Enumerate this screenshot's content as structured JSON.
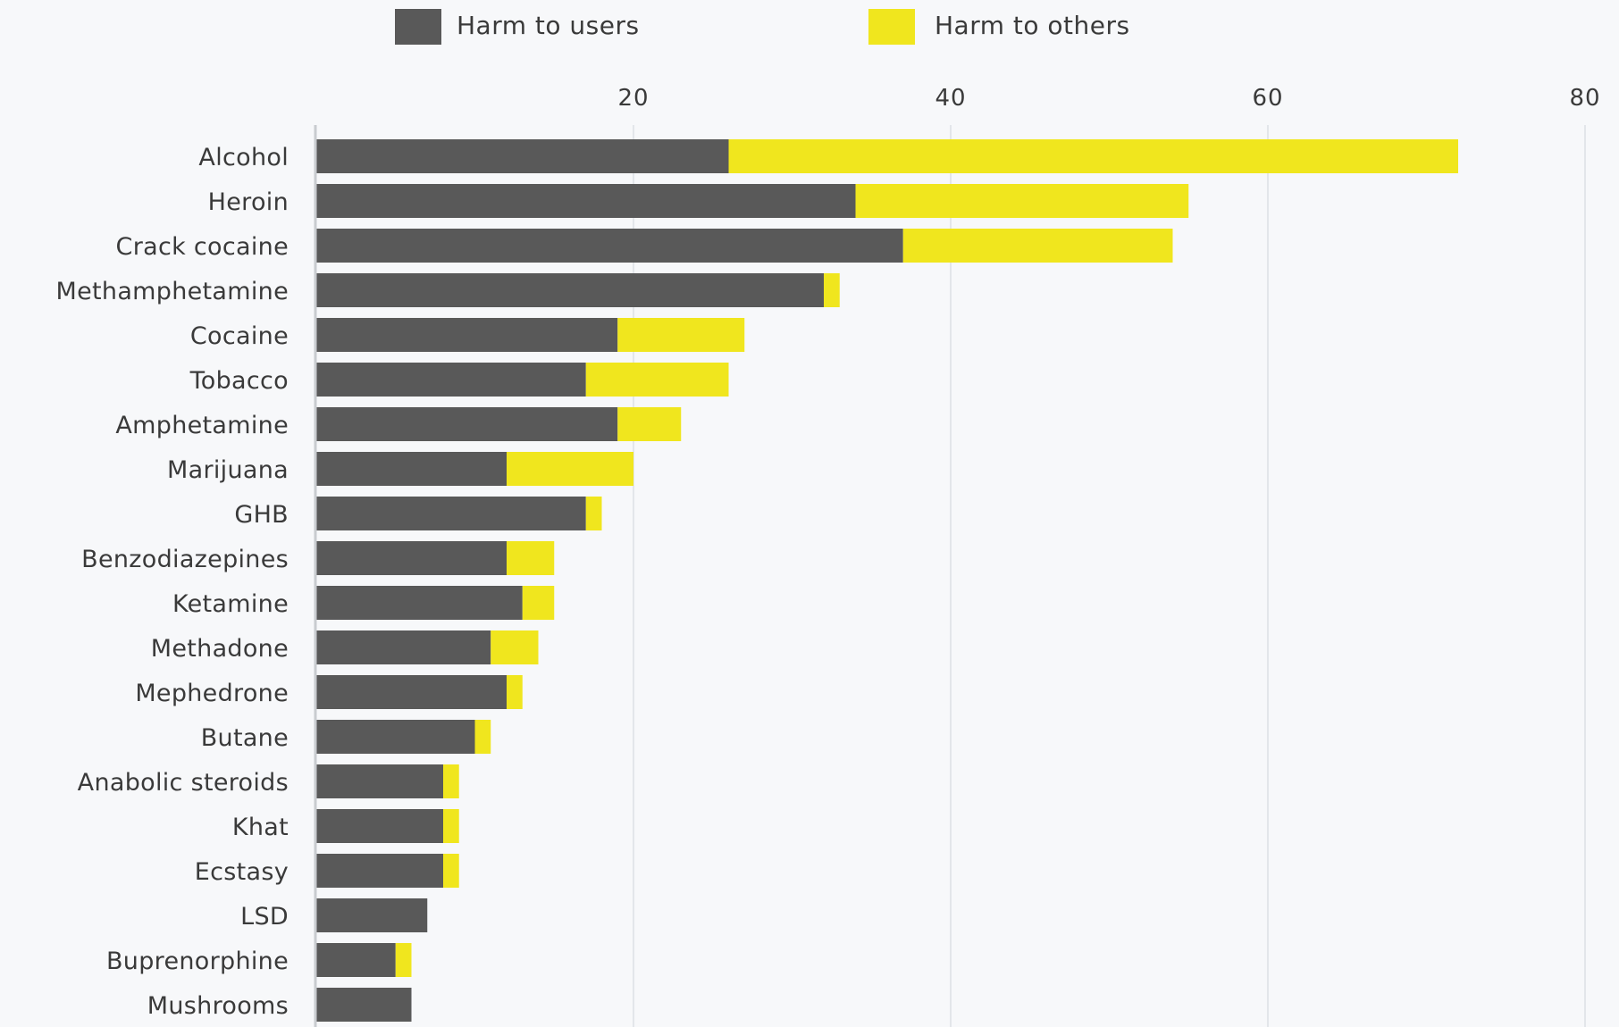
{
  "chart_data": {
    "type": "bar",
    "orientation": "horizontal",
    "stacked": true,
    "legend_placement": "top",
    "grid": true,
    "xlim": [
      0,
      80
    ],
    "x_ticks": [
      20,
      40,
      60,
      80
    ],
    "x_tick_labels": [
      "20",
      "40",
      "60",
      "80"
    ],
    "categories": [
      "Alcohol",
      "Heroin",
      "Crack cocaine",
      "Methamphetamine",
      "Cocaine",
      "Tobacco",
      "Amphetamine",
      "Marijuana",
      "GHB",
      "Benzodiazepines",
      "Ketamine",
      "Methadone",
      "Mephedrone",
      "Butane",
      "Anabolic steroids",
      "Khat",
      "Ecstasy",
      "LSD",
      "Buprenorphine",
      "Mushrooms"
    ],
    "series": [
      {
        "name": "Harm to users",
        "color": "#595959",
        "values": [
          26,
          34,
          37,
          32,
          19,
          17,
          19,
          12,
          17,
          12,
          13,
          11,
          12,
          10,
          8,
          8,
          8,
          7,
          5,
          6
        ]
      },
      {
        "name": "Harm to others",
        "color": "#f0e61e",
        "values": [
          46,
          21,
          17,
          1,
          8,
          9,
          4,
          8,
          1,
          3,
          2,
          3,
          1,
          1,
          1,
          1,
          1,
          0,
          1,
          0
        ]
      }
    ]
  }
}
